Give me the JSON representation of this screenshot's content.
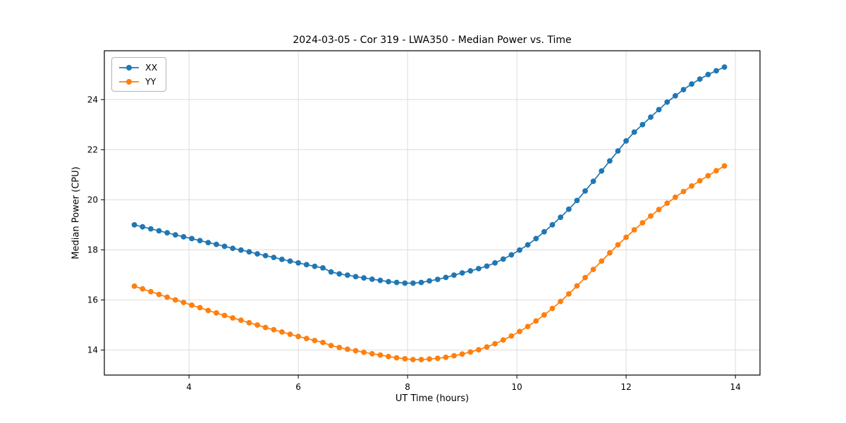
{
  "chart_data": {
    "type": "line",
    "title": "2024-03-05 - Cor 319 - LWA350 - Median Power vs. Time",
    "xlabel": "UT Time (hours)",
    "ylabel": "Median Power (CPU)",
    "xlim": [
      2.45,
      14.45
    ],
    "ylim": [
      13.0,
      25.95
    ],
    "xticks": [
      4,
      6,
      8,
      10,
      12,
      14
    ],
    "yticks": [
      14,
      16,
      18,
      20,
      22,
      24
    ],
    "grid": true,
    "grid_color": "#dcdcdc",
    "legend_position": "upper left",
    "x": [
      3.0,
      3.15,
      3.3,
      3.45,
      3.6,
      3.75,
      3.9,
      4.05,
      4.2,
      4.35,
      4.5,
      4.65,
      4.8,
      4.95,
      5.1,
      5.25,
      5.4,
      5.55,
      5.7,
      5.85,
      6.0,
      6.15,
      6.3,
      6.45,
      6.6,
      6.75,
      6.9,
      7.05,
      7.2,
      7.35,
      7.5,
      7.65,
      7.8,
      7.95,
      8.1,
      8.25,
      8.4,
      8.55,
      8.7,
      8.85,
      9.0,
      9.15,
      9.3,
      9.45,
      9.6,
      9.75,
      9.9,
      10.05,
      10.2,
      10.35,
      10.5,
      10.65,
      10.8,
      10.95,
      11.1,
      11.25,
      11.4,
      11.55,
      11.7,
      11.85,
      12.0,
      12.15,
      12.3,
      12.45,
      12.6,
      12.75,
      12.9,
      13.05,
      13.2,
      13.35,
      13.5,
      13.65,
      13.8
    ],
    "series": [
      {
        "name": "XX",
        "color": "#1f77b4",
        "values": [
          19.0,
          18.92,
          18.84,
          18.76,
          18.68,
          18.6,
          18.52,
          18.45,
          18.37,
          18.29,
          18.22,
          18.14,
          18.06,
          17.99,
          17.92,
          17.84,
          17.77,
          17.7,
          17.62,
          17.55,
          17.48,
          17.41,
          17.34,
          17.28,
          17.12,
          17.04,
          16.99,
          16.93,
          16.88,
          16.83,
          16.78,
          16.73,
          16.7,
          16.67,
          16.67,
          16.7,
          16.76,
          16.82,
          16.9,
          16.99,
          17.08,
          17.16,
          17.25,
          17.35,
          17.48,
          17.63,
          17.8,
          17.99,
          18.2,
          18.45,
          18.72,
          19.0,
          19.3,
          19.62,
          19.97,
          20.35,
          20.74,
          21.15,
          21.55,
          21.95,
          22.35,
          22.7,
          23.0,
          23.3,
          23.6,
          23.9,
          24.15,
          24.4,
          24.62,
          24.82,
          25.0,
          25.15,
          25.3
        ]
      },
      {
        "name": "YY",
        "color": "#ff7f0e",
        "values": [
          16.55,
          16.44,
          16.33,
          16.22,
          16.11,
          16.0,
          15.9,
          15.79,
          15.69,
          15.58,
          15.48,
          15.38,
          15.28,
          15.19,
          15.09,
          15.0,
          14.9,
          14.81,
          14.72,
          14.63,
          14.54,
          14.46,
          14.38,
          14.3,
          14.18,
          14.1,
          14.03,
          13.97,
          13.91,
          13.85,
          13.8,
          13.74,
          13.69,
          13.65,
          13.62,
          13.62,
          13.64,
          13.67,
          13.71,
          13.77,
          13.84,
          13.92,
          14.01,
          14.12,
          14.25,
          14.4,
          14.56,
          14.74,
          14.94,
          15.16,
          15.4,
          15.66,
          15.94,
          16.24,
          16.56,
          16.89,
          17.22,
          17.55,
          17.88,
          18.2,
          18.5,
          18.8,
          19.08,
          19.35,
          19.61,
          19.86,
          20.1,
          20.33,
          20.55,
          20.76,
          20.96,
          21.16,
          21.35
        ]
      }
    ]
  }
}
